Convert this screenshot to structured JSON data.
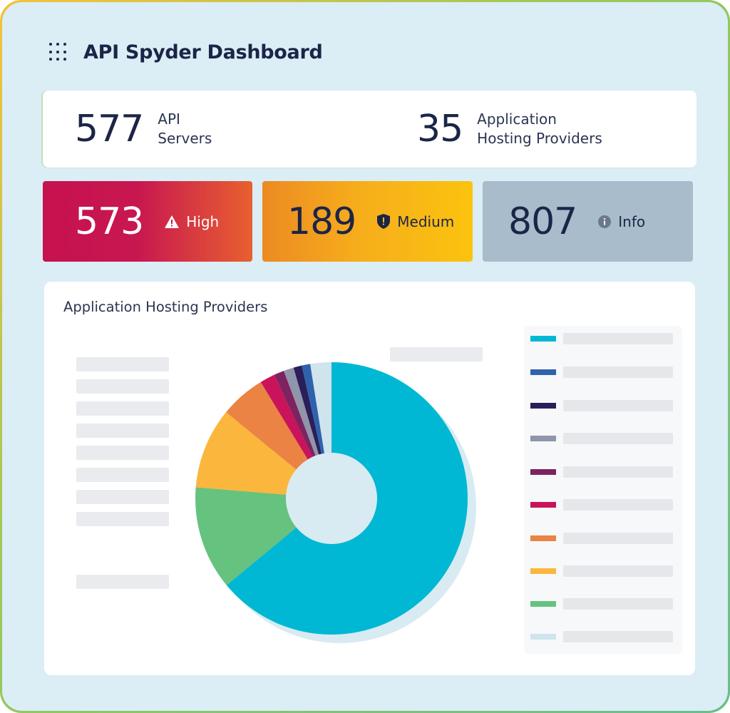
{
  "header": {
    "title": "API Spyder Dashboard",
    "icon": "grid-icon"
  },
  "summary": {
    "api_servers": {
      "value": "577",
      "label_line1": "API",
      "label_line2": "Servers"
    },
    "hosting_providers": {
      "value": "35",
      "label_line1": "Application",
      "label_line2": "Hosting Providers"
    }
  },
  "severity": {
    "high": {
      "value": "573",
      "label": "High",
      "icon": "warning-triangle-icon"
    },
    "medium": {
      "value": "189",
      "label": "Medium",
      "icon": "shield-icon"
    },
    "info": {
      "value": "807",
      "label": "Info",
      "icon": "info-circle-icon"
    }
  },
  "chart": {
    "title": "Application Hosting Providers"
  },
  "chart_data": {
    "type": "pie",
    "title": "Application Hosting Providers",
    "donut": true,
    "series": [
      {
        "color": "#00b8d4",
        "value": 64.0
      },
      {
        "color": "#66c27f",
        "value": 12.3
      },
      {
        "color": "#fbb63d",
        "value": 9.6
      },
      {
        "color": "#ea8343",
        "value": 5.4
      },
      {
        "color": "#c9135a",
        "value": 1.8
      },
      {
        "color": "#7d2360",
        "value": 1.2
      },
      {
        "color": "#9095aa",
        "value": 1.2
      },
      {
        "color": "#2a1f5a",
        "value": 1.0
      },
      {
        "color": "#2f62ac",
        "value": 1.0
      },
      {
        "color": "#cfe4ec",
        "value": 2.5
      }
    ],
    "legend_colors": [
      "#00b8d4",
      "#2f62ac",
      "#2a1f5a",
      "#9095aa",
      "#7d2360",
      "#c9135a",
      "#ea8343",
      "#fbb63d",
      "#66c27f",
      "#cfe4ec"
    ]
  }
}
